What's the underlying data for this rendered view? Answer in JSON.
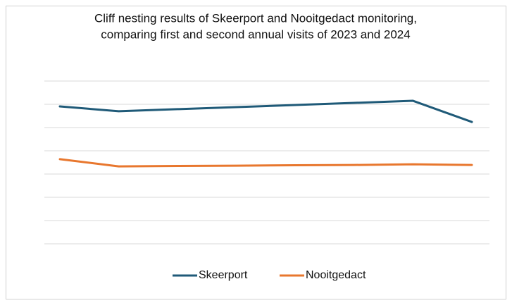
{
  "chart_data": {
    "type": "line",
    "title_lines": [
      "Cliff nesting results of Skeerport and Nooitgedact monitoring,",
      "comparing first and second annual visits of 2023 and 2024"
    ],
    "categories": [
      null,
      null,
      null,
      null,
      null,
      null,
      null,
      null
    ],
    "series": [
      {
        "name": "Skeerport",
        "color": "#1f5a78",
        "values": [
          5.91,
          5.7,
          5.79,
          5.88,
          5.97,
          6.06,
          6.15,
          5.24
        ]
      },
      {
        "name": "Nooitgedact",
        "color": "#e8772e",
        "values": [
          3.64,
          3.33,
          3.35,
          3.36,
          3.38,
          3.39,
          3.42,
          3.39
        ]
      }
    ],
    "ylim": [
      0,
      7
    ],
    "yticks": [
      0,
      1,
      2,
      3,
      4,
      5,
      6,
      7
    ],
    "grid": true,
    "legend": "bottom"
  }
}
